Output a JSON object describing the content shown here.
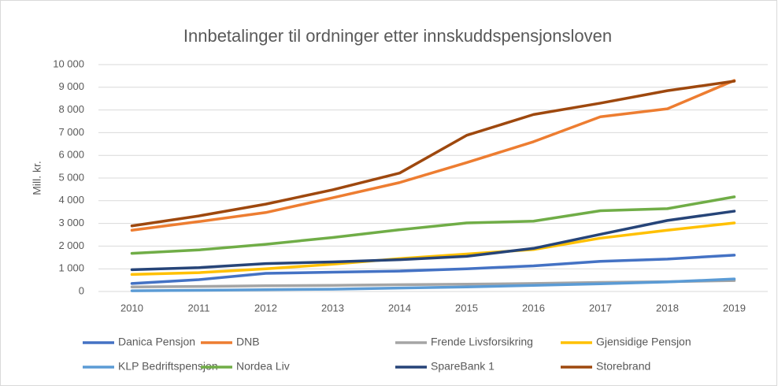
{
  "chart_data": {
    "type": "line",
    "title": "Innbetalinger til ordninger etter innskuddspensjonsloven",
    "y_label": "Mill. kr.",
    "categories": [
      "2010",
      "2011",
      "2012",
      "2013",
      "2014",
      "2015",
      "2016",
      "2017",
      "2018",
      "2019"
    ],
    "ylim": [
      0,
      10000
    ],
    "yticks": [
      0,
      {
        "value": 1000,
        "label": "1 000"
      },
      {
        "value": 2000,
        "label": "2 000"
      },
      {
        "value": 3000,
        "label": "3 000"
      },
      {
        "value": 4000,
        "label": "4 000"
      },
      {
        "value": 5000,
        "label": "5 000"
      },
      {
        "value": 6000,
        "label": "6 000"
      },
      {
        "value": 7000,
        "label": "7 000"
      },
      {
        "value": 8000,
        "label": "8 000"
      },
      {
        "value": 9000,
        "label": "9 000"
      },
      {
        "value": 10000,
        "label": "10 000"
      }
    ],
    "grid": true,
    "legend": "bottom",
    "series": [
      {
        "name": "Danica Pensjon",
        "color": "#4472c4",
        "values": [
          350,
          520,
          800,
          850,
          900,
          1000,
          1130,
          1330,
          1430,
          1600
        ]
      },
      {
        "name": "DNB",
        "color": "#ed7d31",
        "values": [
          2700,
          3080,
          3480,
          4130,
          4800,
          5680,
          6600,
          7700,
          8050,
          9300
        ]
      },
      {
        "name": "Frende Livsforsikring",
        "color": "#a5a5a5",
        "values": [
          200,
          220,
          250,
          270,
          300,
          320,
          350,
          400,
          430,
          480
        ]
      },
      {
        "name": "Gjensidige Pensjon",
        "color": "#ffc000",
        "values": [
          750,
          830,
          1000,
          1200,
          1450,
          1650,
          1850,
          2350,
          2700,
          3020
        ]
      },
      {
        "name": "KLP Bedriftspensjon",
        "color": "#5b9bd5",
        "values": [
          30,
          50,
          80,
          100,
          150,
          200,
          270,
          340,
          420,
          550
        ]
      },
      {
        "name": "Nordea Liv",
        "color": "#70ad47",
        "values": [
          1680,
          1830,
          2080,
          2380,
          2720,
          3020,
          3100,
          3560,
          3650,
          4170
        ]
      },
      {
        "name": "SpareBank 1",
        "color": "#264478",
        "values": [
          960,
          1050,
          1230,
          1300,
          1400,
          1550,
          1900,
          2520,
          3130,
          3540
        ]
      },
      {
        "name": "Storebrand",
        "color": "#9e480e",
        "values": [
          2890,
          3330,
          3850,
          4480,
          5220,
          6880,
          7800,
          8300,
          8850,
          9270
        ]
      }
    ]
  }
}
